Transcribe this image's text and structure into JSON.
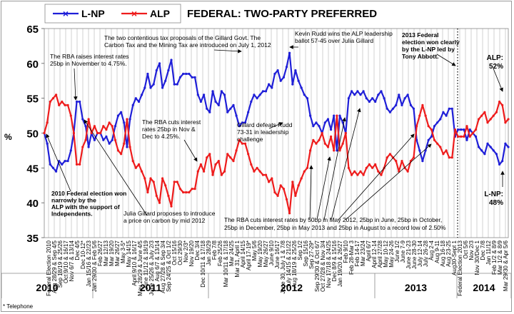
{
  "chart_data": {
    "type": "line",
    "title": "FEDERAL: TWO-PARTY PREFERRED",
    "ylabel": "%",
    "ylim": [
      35,
      65
    ],
    "yticks": [
      "35",
      "40",
      "45",
      "50",
      "55",
      "60",
      "65"
    ],
    "grid": "vertical gridlines",
    "legend_position": "top-left",
    "footnote": "* Telephone",
    "colors": {
      "lnp": "#1f1fd8",
      "alp": "#ee1c1c",
      "election_divider": "#000000"
    },
    "legend": [
      {
        "name": "L-NP",
        "color": "#1f1fd8"
      },
      {
        "name": "ALP",
        "color": "#ee1c1c"
      }
    ],
    "x_labels": [
      "Federal Election 2010",
      "Aug 28/29 & Sep 4/5",
      "Sep 18/19 & 25/26",
      "Oct 9/10 & 16/17",
      "Nov 6/7 & 13/14",
      "Dec 4/5",
      "Dec 10-12*",
      "Jan 15/16 & 22/23",
      "Jan 29/30 & Feb 5/6",
      "Feb 26/27",
      "Mar 12/13",
      "Mar 19/20",
      "Mar 26/27",
      "May 3-5*",
      "May 14/15",
      "April 9/10 & 16/17",
      "May 28/29 & June 4/5",
      "June 11/12 & 18/19",
      "June 25/26 & July 2/3",
      "Aug 6/7 & 13/14",
      "Aug 27/28 & Sep 3/4",
      "Sep 24/25 & Oct 1/2",
      "Oct 15/16",
      "Oct 29/30",
      "Nov 2/3*",
      "Nov 19/20",
      "Dec 3/4",
      "Dec 10/11 & 17/18",
      "Jan 28/29",
      "Feb 7/8",
      "Feb 25/26",
      "Mar 10/11 & 17/18",
      "Mar 24/25",
      "Mar 31, April 1",
      "April 14/15",
      "April 17-19*",
      "May 5/6",
      "May 19/20",
      "May 26/27",
      "June 9/10",
      "June 16/17",
      "June 30, July 1 & 7/8",
      "July 14/15 & 21/22",
      "Aug 18/19 & 25/26",
      "Sep 1/2",
      "Sep 15/16",
      "Sep 27-29*",
      "Sep 29/30 & Oct 6/7",
      "Oct 27/28 & Nov 3/4",
      "Nov 17/18 & 24/25",
      "Dec 8/9 & 15/16",
      "Jan 19/20 & 26/27",
      "Feb 9/10",
      "Feb 28-Mar 3",
      "Feb 14-17",
      "Mar 23/24",
      "April 6/7",
      "April 12-14",
      "April 27/28",
      "May 10-12",
      "May 24-26",
      "June 1/2",
      "June 7-9",
      "June 21-23",
      "June 28-30",
      "July 12-14",
      "July 26-28",
      "Aug 2-4",
      "Aug 9-11",
      "Aug 16-18",
      "Aug 23-25",
      "Aug30-Sept 1",
      "Federal Election 2013",
      "Oct 5/6",
      "Nov 2/3",
      "Nov 30/Dec 1",
      "Dec 7/8",
      "Jan 11/12",
      "Feb 1/2 & 8/9",
      "Mar 1/2 & 8/9",
      "Mar 29/30 & Apr 5/6"
    ],
    "year_labels": [
      "2010",
      "2011",
      "2012",
      "2013",
      "2014"
    ],
    "series": [
      {
        "name": "L-NP",
        "values": [
          50.0,
          48.5,
          45.5,
          45.0,
          44.5,
          46.0,
          45.5,
          46.0,
          46.0,
          47.5,
          50.0,
          54.5,
          54.5,
          52.0,
          51.0,
          48.0,
          50.0,
          49.0,
          50.0,
          50.0,
          49.0,
          49.5,
          48.5,
          49.0,
          51.0,
          52.5,
          53.0,
          51.5,
          48.0,
          52.0,
          54.0,
          55.0,
          54.5,
          55.5,
          56.5,
          58.5,
          56.5,
          57.0,
          59.0,
          60.0,
          56.5,
          57.5,
          59.0,
          60.5,
          57.0,
          57.0,
          58.0,
          58.5,
          58.5,
          58.5,
          58.0,
          58.0,
          55.5,
          54.5,
          55.5,
          53.5,
          53.0,
          56.0,
          54.5,
          54.0,
          56.0,
          55.5,
          53.0,
          53.5,
          54.0,
          52.5,
          51.0,
          51.5,
          51.5,
          53.0,
          54.5,
          55.5,
          55.0,
          55.5,
          56.0,
          56.0,
          57.0,
          56.5,
          58.5,
          59.0,
          57.5,
          58.0,
          59.5,
          61.5,
          57.0,
          59.0,
          57.5,
          56.5,
          55.5,
          55.0,
          52.5,
          51.0,
          51.5,
          51.0,
          50.0,
          51.5,
          52.0,
          50.5,
          52.5,
          47.5,
          52.5,
          51.5,
          50.0,
          55.0,
          56.0,
          55.5,
          56.0,
          55.5,
          56.0,
          55.0,
          54.5,
          55.0,
          54.5,
          55.5,
          56.0,
          55.0,
          53.5,
          53.0,
          53.5,
          54.0,
          55.5,
          54.0,
          55.0,
          55.5,
          54.0,
          53.5,
          49.0,
          47.5,
          46.0,
          47.5,
          49.0,
          49.5,
          51.0,
          51.5,
          52.0,
          53.0,
          52.5,
          53.5,
          53.5,
          49.5,
          50.5,
          50.5,
          50.5,
          49.0,
          50.5,
          50.0,
          49.5,
          48.0,
          47.5,
          47.0,
          48.5,
          48.0,
          47.5,
          47.0,
          45.5,
          46.0,
          48.5,
          48.0
        ]
      },
      {
        "name": "ALP",
        "values": [
          50.0,
          51.5,
          54.5,
          55.0,
          55.5,
          54.0,
          54.5,
          54.0,
          54.0,
          52.5,
          50.0,
          45.5,
          45.5,
          48.0,
          49.0,
          52.0,
          50.0,
          51.0,
          50.0,
          50.0,
          51.0,
          50.5,
          51.5,
          51.0,
          49.0,
          47.5,
          47.0,
          48.5,
          52.0,
          48.0,
          46.0,
          45.0,
          45.5,
          44.5,
          43.5,
          41.5,
          43.5,
          43.0,
          41.0,
          40.0,
          43.5,
          42.5,
          41.0,
          39.5,
          43.0,
          43.0,
          42.0,
          41.5,
          41.5,
          41.5,
          42.0,
          42.0,
          44.5,
          45.5,
          44.5,
          46.5,
          47.0,
          44.0,
          45.5,
          46.0,
          44.0,
          44.5,
          47.0,
          46.5,
          46.0,
          47.5,
          49.0,
          48.5,
          48.5,
          47.0,
          45.5,
          44.5,
          45.0,
          44.5,
          44.0,
          44.0,
          43.0,
          43.5,
          41.5,
          41.0,
          42.5,
          42.0,
          40.5,
          38.5,
          43.0,
          41.0,
          42.5,
          43.5,
          44.5,
          45.0,
          47.5,
          49.0,
          48.5,
          49.0,
          50.0,
          48.5,
          48.0,
          49.5,
          47.5,
          52.5,
          47.5,
          48.5,
          50.0,
          45.0,
          44.0,
          44.5,
          44.0,
          44.5,
          44.0,
          45.0,
          45.5,
          45.0,
          45.5,
          44.5,
          44.0,
          45.0,
          46.5,
          47.0,
          46.5,
          46.0,
          44.5,
          46.0,
          45.0,
          44.5,
          46.0,
          46.5,
          51.0,
          52.5,
          54.0,
          52.5,
          51.0,
          50.5,
          49.0,
          48.5,
          48.0,
          47.0,
          47.5,
          46.5,
          46.5,
          50.5,
          49.5,
          49.5,
          49.5,
          51.0,
          49.5,
          50.0,
          50.5,
          52.0,
          52.5,
          53.0,
          51.5,
          52.0,
          52.5,
          53.0,
          54.5,
          54.0,
          51.5,
          52.0
        ]
      }
    ],
    "end_labels": [
      {
        "lines": [
          "ALP:",
          "52%"
        ]
      },
      {
        "lines": [
          "L-NP:",
          "48%"
        ]
      }
    ],
    "annotations": [
      {
        "lines": [
          "The RBA raises interest rates",
          "25bp in November to 4.75%."
        ]
      },
      {
        "lines": [
          "2010 Federal election won",
          "narrowly by the",
          "ALP with the support of",
          "Independents."
        ]
      },
      {
        "lines": [
          "Julia Gillard proposes to introduce",
          "a price on carbon by mid 2012"
        ]
      },
      {
        "lines": [
          "The RBA cuts interest",
          "rates 25bp in Nov &",
          "Dec to 4.25%."
        ]
      },
      {
        "lines": [
          "The two contentious tax proposals of the Gillard Govt. The",
          "Carbon Tax and the Mining Tax are introduced on July 1, 2012"
        ]
      },
      {
        "lines": [
          "Gillard defeats Rudd",
          "73-31 in leadership",
          "challenge"
        ]
      },
      {
        "lines": [
          "Kevin Rudd wins the ALP leadership",
          "ballot 57-45 over Julia Gillard"
        ]
      },
      {
        "lines": [
          "2013 Federal",
          "election won clearly",
          "by the L-NP led by",
          "Tony Abbott."
        ]
      },
      {
        "lines": [
          "The RBA cuts interest rates by 50bp in May 2012, 25bp in June, 25bp in October,",
          "25bp in December, 25bp in May 2013 and 25bp in August to a record low of 2.50%"
        ]
      }
    ]
  }
}
